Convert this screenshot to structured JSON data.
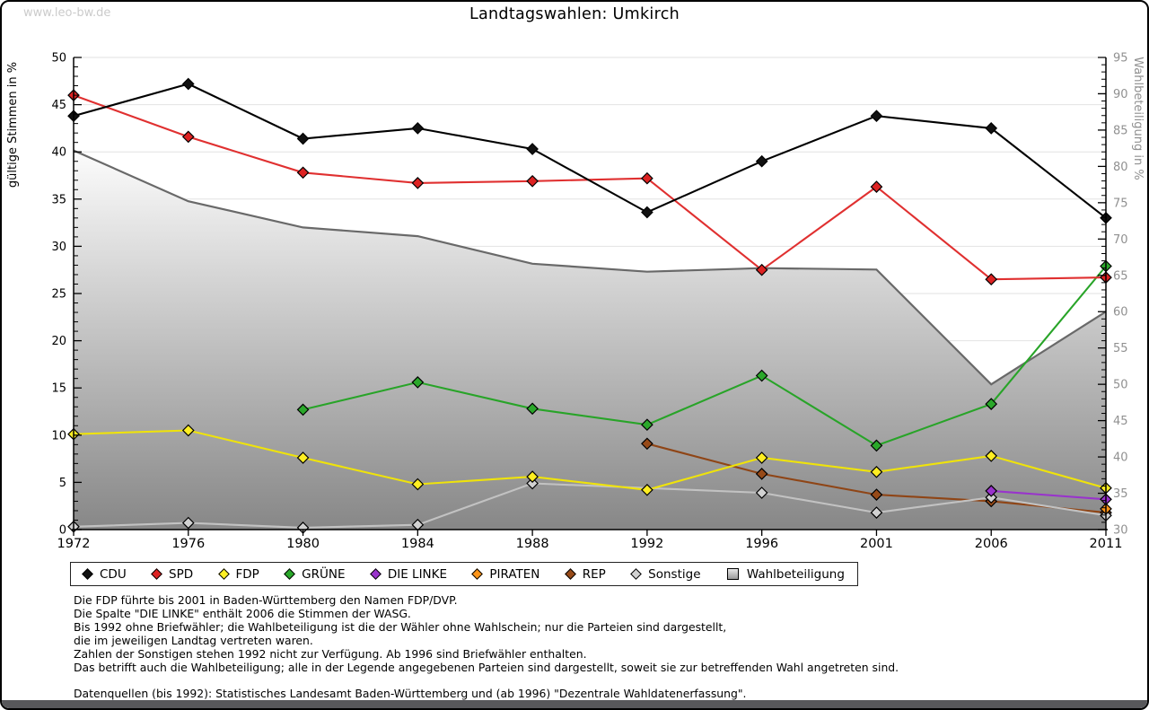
{
  "page": {
    "watermark": "www.leo-bw.de",
    "title": "Landtagswahlen: Umkirch"
  },
  "chart_data": {
    "type": "line",
    "title": "Landtagswahlen: Umkirch",
    "categories": [
      1972,
      1976,
      1980,
      1984,
      1988,
      1992,
      1996,
      2001,
      2006,
      2011
    ],
    "equal_category_spacing": true,
    "grid": "horizontal",
    "left_axis": {
      "label": "gültige Stimmen in %",
      "min": 0,
      "max": 50,
      "tick_step": 5,
      "minor_tick_step": 1
    },
    "right_axis": {
      "label": "Wahlbeteiligung in %",
      "min": 30,
      "max": 95,
      "tick_step": 5,
      "minor_tick_step": 1
    },
    "series": [
      {
        "name": "CDU",
        "axis": "left",
        "color": "#000000",
        "marker_fill": "#111111",
        "values": [
          43.8,
          47.2,
          41.4,
          42.5,
          40.3,
          33.6,
          39.0,
          43.8,
          42.5,
          33.0
        ]
      },
      {
        "name": "SPD",
        "axis": "left",
        "color": "#e03030",
        "marker_fill": "#dd2222",
        "values": [
          46.0,
          41.6,
          37.8,
          36.7,
          36.9,
          37.2,
          27.5,
          36.3,
          26.5,
          26.7
        ]
      },
      {
        "name": "FDP",
        "axis": "left",
        "color": "#efe30a",
        "marker_fill": "#ffee22",
        "values": [
          10.1,
          10.5,
          7.6,
          4.8,
          5.6,
          4.2,
          7.6,
          6.1,
          7.8,
          4.4
        ]
      },
      {
        "name": "GRÜNE",
        "axis": "left",
        "color": "#28a428",
        "marker_fill": "#2aa82a",
        "values": [
          null,
          null,
          12.7,
          15.6,
          12.8,
          11.1,
          16.3,
          8.9,
          13.3,
          27.9
        ]
      },
      {
        "name": "DIE LINKE",
        "axis": "left",
        "color": "#9933cc",
        "marker_fill": "#9933cc",
        "values": [
          null,
          null,
          null,
          null,
          null,
          null,
          null,
          null,
          4.1,
          3.2
        ]
      },
      {
        "name": "PIRATEN",
        "axis": "left",
        "color": "#ff9418",
        "marker_fill": "#ff9418",
        "values": [
          null,
          null,
          null,
          null,
          null,
          null,
          null,
          null,
          null,
          2.2
        ]
      },
      {
        "name": "REP",
        "axis": "left",
        "color": "#8f4516",
        "marker_fill": "#974a18",
        "values": [
          null,
          null,
          null,
          null,
          null,
          9.1,
          5.9,
          3.7,
          3.0,
          1.8
        ]
      },
      {
        "name": "Sonstige",
        "axis": "left",
        "color": "#c2c2c2",
        "marker_fill": "#d2d2d2",
        "values": [
          0.3,
          0.7,
          0.2,
          0.5,
          4.9,
          null,
          3.9,
          1.8,
          3.4,
          1.5
        ]
      },
      {
        "name": "Wahlbeteiligung",
        "axis": "right",
        "type": "area",
        "stroke": "#696969",
        "fill_top": "#fcfcfc",
        "fill_bottom": "#878787",
        "values": [
          82.2,
          75.2,
          71.6,
          70.4,
          66.6,
          65.5,
          66.0,
          65.8,
          50.0,
          60.0
        ]
      }
    ],
    "styles": {
      "gridline_color": "#e2e2e2",
      "axis_color": "#000000",
      "right_axis_text_color": "#909090",
      "left_axis_text_color": "#000000"
    }
  },
  "legend": {
    "items": [
      {
        "label": "CDU",
        "marker": "diamond-marker",
        "color": "#111111"
      },
      {
        "label": "SPD",
        "marker": "diamond-marker",
        "color": "#dd2222"
      },
      {
        "label": "FDP",
        "marker": "diamond-marker",
        "color": "#ffee22"
      },
      {
        "label": "GRÜNE",
        "marker": "diamond-marker",
        "color": "#2aa82a"
      },
      {
        "label": "DIE LINKE",
        "marker": "diamond-marker",
        "color": "#9933cc"
      },
      {
        "label": "PIRATEN",
        "marker": "diamond-marker",
        "color": "#ff9418"
      },
      {
        "label": "REP",
        "marker": "diamond-marker",
        "color": "#974a18"
      },
      {
        "label": "Sonstige",
        "marker": "diamond-marker",
        "color": "#d2d2d2"
      },
      {
        "label": "Wahlbeteiligung",
        "marker": "square-marker",
        "color": "#bbbbbb"
      }
    ]
  },
  "footnotes": [
    "Die FDP führte bis 2001 in Baden-Württemberg den Namen FDP/DVP.",
    "Die Spalte \"DIE LINKE\" enthält 2006 die Stimmen der WASG.",
    "Bis 1992 ohne Briefwähler; die Wahlbeteiligung ist die der Wähler ohne Wahlschein; nur die Parteien sind dargestellt,",
    "die im jeweiligen Landtag vertreten waren.",
    "Zahlen der Sonstigen stehen 1992 nicht zur Verfügung. Ab 1996 sind Briefwähler enthalten.",
    "Das betrifft auch die Wahlbeteiligung; alle in der Legende angegebenen Parteien sind dargestellt, soweit sie zur betreffenden Wahl angetreten sind.",
    "",
    "Datenquellen (bis 1992): Statistisches Landesamt Baden-Württemberg und (ab 1996) \"Dezentrale Wahldatenerfassung\"."
  ]
}
